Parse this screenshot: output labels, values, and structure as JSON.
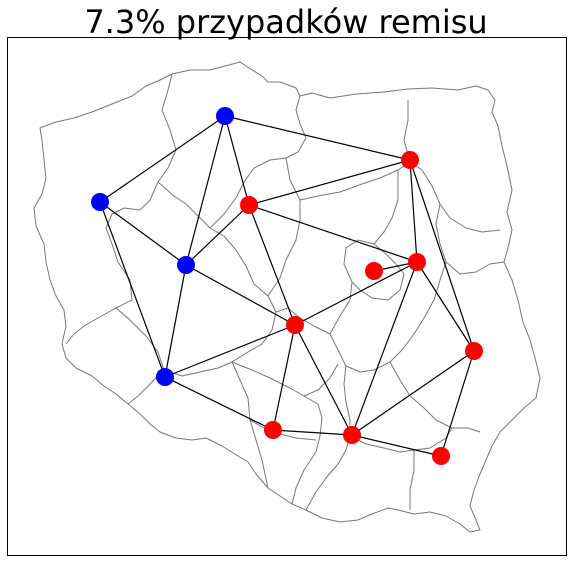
{
  "title": "7.3% przypadków remisu",
  "colors": {
    "blue": "#0000ff",
    "red": "#ff0000",
    "edge": "#000000",
    "border": "#777777",
    "frame": "#000000"
  },
  "nodes": [
    {
      "id": "n1",
      "color": "blue"
    },
    {
      "id": "n2",
      "color": "blue"
    },
    {
      "id": "n3",
      "color": "blue"
    },
    {
      "id": "n4",
      "color": "blue"
    },
    {
      "id": "n5",
      "color": "red"
    },
    {
      "id": "n6",
      "color": "red"
    },
    {
      "id": "n7",
      "color": "red"
    },
    {
      "id": "n8",
      "color": "red"
    },
    {
      "id": "n9",
      "color": "red"
    },
    {
      "id": "n10",
      "color": "red"
    },
    {
      "id": "n11",
      "color": "red"
    },
    {
      "id": "n12",
      "color": "red"
    },
    {
      "id": "n13",
      "color": "red"
    }
  ],
  "edges": [
    [
      "n1",
      "n2"
    ],
    [
      "n1",
      "n5"
    ],
    [
      "n1",
      "n6"
    ],
    [
      "n1",
      "n3"
    ],
    [
      "n2",
      "n3"
    ],
    [
      "n2",
      "n4"
    ],
    [
      "n3",
      "n6"
    ],
    [
      "n3",
      "n4"
    ],
    [
      "n3",
      "n7"
    ],
    [
      "n4",
      "n7"
    ],
    [
      "n4",
      "n10"
    ],
    [
      "n5",
      "n6"
    ],
    [
      "n5",
      "n8"
    ],
    [
      "n5",
      "n12"
    ],
    [
      "n6",
      "n7"
    ],
    [
      "n6",
      "n8"
    ],
    [
      "n7",
      "n8"
    ],
    [
      "n7",
      "n10"
    ],
    [
      "n7",
      "n11"
    ],
    [
      "n8",
      "n9"
    ],
    [
      "n8",
      "n12"
    ],
    [
      "n8",
      "n11"
    ],
    [
      "n10",
      "n11"
    ],
    [
      "n11",
      "n12"
    ],
    [
      "n11",
      "n13"
    ],
    [
      "n12",
      "n13"
    ]
  ]
}
